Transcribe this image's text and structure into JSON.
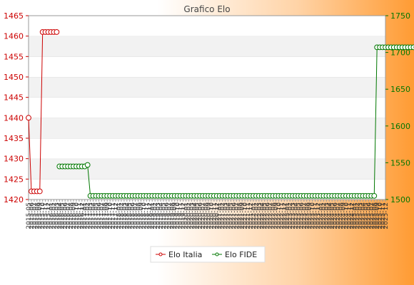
{
  "chart_data": {
    "type": "line",
    "title": "Grafico Elo",
    "y_left": {
      "min": 1420,
      "max": 1465,
      "step": 5,
      "color": "#cc0000",
      "ticks": [
        "1420",
        "1425",
        "1430",
        "1435",
        "1440",
        "1445",
        "1450",
        "1455",
        "1460",
        "1465"
      ]
    },
    "y_right": {
      "min": 1500,
      "max": 1750,
      "step": 50,
      "color": "#007700",
      "ticks": [
        "1500",
        "1550",
        "1600",
        "1650",
        "1700",
        "1750"
      ]
    },
    "grid": "horizontal bands",
    "legend_position": "bottom-center",
    "x_tick_labels": [
      "2015-05",
      "2015-06",
      "2015-07",
      "2015-08",
      "2015-09",
      "2015-10",
      "2015-11",
      "2015-12",
      "2016-01",
      "2016-02",
      "2016-03",
      "2016-04",
      "2016-05",
      "2016-06",
      "2016-07",
      "2016-08",
      "2016-09",
      "2016-10",
      "2016-11",
      "2016-12",
      "2017-01",
      "2017-02",
      "2017-03",
      "2017-04",
      "2017-05",
      "2017-06",
      "2017-07",
      "2017-08",
      "2017-09",
      "2017-10",
      "2017-11",
      "2017-12",
      "2018-01",
      "2018-02",
      "2018-03",
      "2018-04",
      "2018-05",
      "2018-06",
      "2018-07",
      "2018-08",
      "2018-09",
      "2018-10",
      "2018-11",
      "2018-12",
      "2019-01",
      "2019-02",
      "2019-03",
      "2019-04",
      "2019-05",
      "2019-06",
      "2019-07",
      "2019-08",
      "2019-09",
      "2019-10",
      "2019-11",
      "2019-12",
      "2020-01",
      "2020-02",
      "2020-03",
      "2020-04",
      "2020-05",
      "2020-06",
      "2020-07",
      "2020-08",
      "2020-09",
      "2020-10",
      "2020-11",
      "2020-12",
      "2021-01",
      "2021-02",
      "2021-03",
      "2021-04",
      "2021-05",
      "2021-06",
      "2021-07",
      "2021-08",
      "2021-09",
      "2021-10",
      "2021-11",
      "2021-12",
      "2022-01",
      "2022-02",
      "2022-03",
      "2022-04",
      "2022-05",
      "2022-06",
      "2022-07",
      "2022-08",
      "2022-09",
      "2022-10",
      "2022-11",
      "2022-12",
      "2023-01",
      "2023-02",
      "2023-03",
      "2023-04",
      "2023-05",
      "2023-06",
      "2023-07",
      "2023-08",
      "2023-09",
      "2023-10",
      "2023-11",
      "2023-12",
      "2024-01",
      "2024-02",
      "2024-03",
      "2024-04",
      "2024-05",
      "2024-06",
      "2024-07",
      "2024-08",
      "2024-09",
      "2024-10",
      "2024-11",
      "2024-12",
      "2025-01",
      "2025-02",
      "2025-03",
      "2025-04",
      "2025-05",
      "2025-06",
      "2025-07",
      "2025-08",
      "2025-09",
      "2025-10",
      "2025-11",
      "2025-12"
    ],
    "series": [
      {
        "name": "Elo Italia",
        "axis": "left",
        "color": "#cc0000",
        "values": [
          1440,
          1422,
          1422,
          1422,
          1422,
          1461,
          1461,
          1461,
          1461,
          1461,
          1461
        ]
      },
      {
        "name": "Elo FIDE",
        "axis": "right",
        "color": "#007700",
        "start_index": 11,
        "values": [
          1545,
          1545,
          1545,
          1545,
          1545,
          1545,
          1545,
          1545,
          1545,
          1545,
          1547,
          1505,
          1505,
          1505,
          1505,
          1505,
          1505,
          1505,
          1505,
          1505,
          1505,
          1505,
          1505,
          1505,
          1505,
          1505,
          1505,
          1505,
          1505,
          1505,
          1505,
          1505,
          1505,
          1505,
          1505,
          1505,
          1505,
          1505,
          1505,
          1505,
          1505,
          1505,
          1505,
          1505,
          1505,
          1505,
          1505,
          1505,
          1505,
          1505,
          1505,
          1505,
          1505,
          1505,
          1505,
          1505,
          1505,
          1505,
          1505,
          1505,
          1505,
          1505,
          1505,
          1505,
          1505,
          1505,
          1505,
          1505,
          1505,
          1505,
          1505,
          1505,
          1505,
          1505,
          1505,
          1505,
          1505,
          1505,
          1505,
          1505,
          1505,
          1505,
          1505,
          1505,
          1505,
          1505,
          1505,
          1505,
          1505,
          1505,
          1505,
          1505,
          1505,
          1505,
          1505,
          1505,
          1505,
          1505,
          1505,
          1505,
          1505,
          1505,
          1505,
          1505,
          1505,
          1505,
          1505,
          1505,
          1505,
          1505,
          1505,
          1505,
          1505,
          1707,
          1707,
          1707,
          1707,
          1707,
          1707,
          1707,
          1707,
          1707,
          1707,
          1707,
          1707,
          1707,
          1707,
          1707,
          1707,
          1707
        ]
      }
    ]
  }
}
